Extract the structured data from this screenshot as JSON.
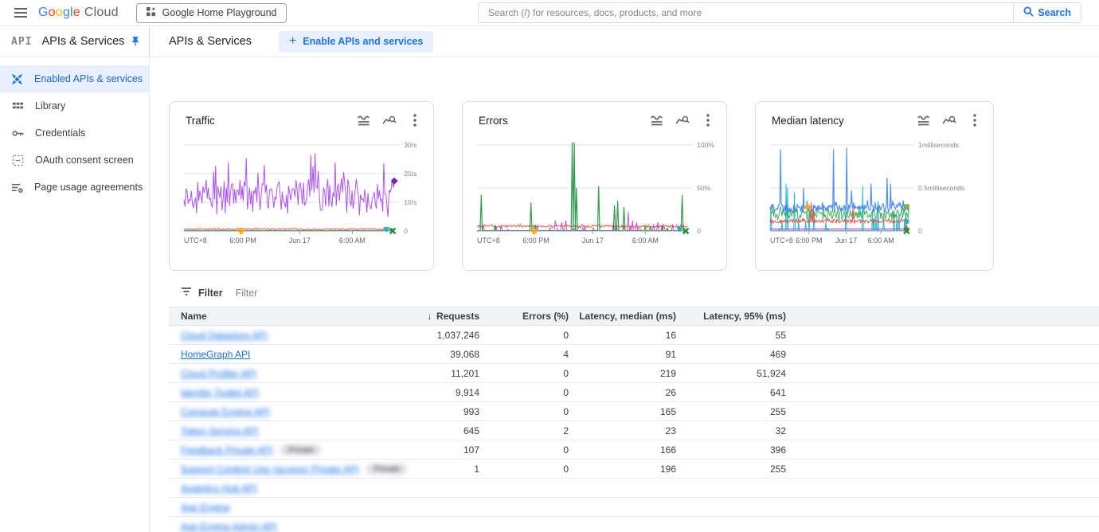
{
  "ui_colors": {
    "accent": "#1a73e8",
    "active_bg": "#e8f0fe",
    "link": "#1a73e8",
    "table_header_bg": "#f1f3f4",
    "border": "#dadce0"
  },
  "topbar": {
    "logo": {
      "letters": [
        {
          "ch": "G",
          "color": "#4285F4"
        },
        {
          "ch": "o",
          "color": "#EA4335"
        },
        {
          "ch": "o",
          "color": "#FBBC04"
        },
        {
          "ch": "g",
          "color": "#4285F4"
        },
        {
          "ch": "l",
          "color": "#34A853"
        },
        {
          "ch": "e",
          "color": "#EA4335"
        }
      ],
      "cloud_text": "Cloud"
    },
    "project_selector": "Google Home Playground",
    "search": {
      "placeholder": "Search (/) for resources, docs, products, and more",
      "button_label": "Search"
    }
  },
  "sidebar": {
    "product_logo": "API",
    "title": "APIs & Services",
    "items": [
      {
        "label": "Enabled APIs & services",
        "icon": "hub-icon",
        "active": true
      },
      {
        "label": "Library",
        "icon": "library-icon",
        "active": false
      },
      {
        "label": "Credentials",
        "icon": "key-icon",
        "active": false
      },
      {
        "label": "OAuth consent screen",
        "icon": "oauth-icon",
        "active": false
      },
      {
        "label": "Page usage agreements",
        "icon": "agreements-icon",
        "active": false
      }
    ]
  },
  "page": {
    "title": "APIs & Services",
    "enable_button_label": "Enable APIs and services"
  },
  "charts": [
    {
      "title": "Traffic",
      "y_ticks": [
        {
          "label": "30/s",
          "f": 1
        },
        {
          "label": "20/s",
          "f": 0.6667
        },
        {
          "label": "10/s",
          "f": 0.3333
        }
      ],
      "zero_label": "0",
      "x_ticks": [
        {
          "label": "UTC+8",
          "f": 0.02,
          "anchor": "start",
          "tick": false
        },
        {
          "label": "6:00 PM",
          "f": 0.28,
          "tick": true
        },
        {
          "label": "Jun 17",
          "f": 0.55,
          "tick": true
        },
        {
          "label": "6:00 AM",
          "f": 0.8,
          "tick": true
        }
      ],
      "series": [
        {
          "name": "requests",
          "color": "#a142f4",
          "width": 1,
          "type": "noisy",
          "base": 0.4,
          "amp": 0.26,
          "spike_p": 0.1,
          "spike_amp": 0.45,
          "min": 0.05,
          "max": 0.95,
          "seed": 11,
          "events": [
            {
              "f": 0.605,
              "h": 0.88
            },
            {
              "f": 0.615,
              "h": 0.75
            },
            {
              "f": 0.625,
              "h": 0.9
            },
            {
              "f": 0.64,
              "h": 0.7
            },
            {
              "f": 0.72,
              "h": 0.8
            }
          ],
          "end_marker": {
            "shape": "diamond",
            "color": "#7627bb"
          }
        },
        {
          "name": "low-red",
          "color": "#ea4335",
          "width": 1,
          "type": "noisy",
          "base": 0.022,
          "amp": 0.012,
          "min": 0.008,
          "max": 0.06,
          "seed": 5
        },
        {
          "name": "zero-green",
          "color": "#1e8e3e",
          "width": 1.4,
          "type": "flat",
          "base": 0.004
        }
      ],
      "markers": [
        {
          "shape": "plus",
          "color": "#f9ab00",
          "f": 0.27,
          "h": 0
        },
        {
          "shape": "tri-down",
          "color": "#12b5cb",
          "f": 0.962,
          "h": 0.015
        },
        {
          "shape": "x",
          "color": "#1e8e3e",
          "f": 0.992,
          "h": 0
        }
      ]
    },
    {
      "title": "Errors",
      "y_ticks": [
        {
          "label": "100%",
          "f": 1
        },
        {
          "label": "50%",
          "f": 0.5
        }
      ],
      "zero_label": "0",
      "x_ticks": [
        {
          "label": "UTC+8",
          "f": 0.02,
          "anchor": "start",
          "tick": false
        },
        {
          "label": "6:00 PM",
          "f": 0.28,
          "tick": true
        },
        {
          "label": "Jun 17",
          "f": 0.55,
          "tick": true
        },
        {
          "label": "6:00 AM",
          "f": 0.8,
          "tick": true
        }
      ],
      "series": [
        {
          "name": "magenta-spikes",
          "color": "#c442da",
          "width": 1,
          "type": "spikes",
          "spike_p": 0.16,
          "amp": 0.07,
          "seed": 33,
          "events": [
            {
              "f": 0.37,
              "h": 0.12
            },
            {
              "f": 0.4,
              "h": 0.1
            },
            {
              "f": 0.42,
              "h": 0.12
            },
            {
              "f": 0.65,
              "h": 0.1
            },
            {
              "f": 0.72,
              "h": 0.22
            },
            {
              "f": 0.74,
              "h": 0.12
            },
            {
              "f": 0.76,
              "h": 0.1
            },
            {
              "f": 0.84,
              "h": 0.08
            },
            {
              "f": 0.86,
              "h": 0.1
            },
            {
              "f": 0.93,
              "h": 0.08
            }
          ]
        },
        {
          "name": "red-rate",
          "color": "#ea4335",
          "width": 1,
          "type": "noisy",
          "base": 0.055,
          "amp": 0.022,
          "min": 0.02,
          "max": 0.12,
          "seed": 8
        },
        {
          "name": "green-errors",
          "color": "#1e8e3e",
          "width": 1.2,
          "type": "spikes",
          "spike_p": 0.02,
          "amp": 0.06,
          "seed": 21,
          "events": [
            {
              "f": 0.018,
              "h": 0.42
            },
            {
              "f": 0.255,
              "h": 0.33
            },
            {
              "f": 0.452,
              "h": 1.03
            },
            {
              "f": 0.462,
              "h": 1.03
            },
            {
              "f": 0.472,
              "h": 0.5
            },
            {
              "f": 0.58,
              "h": 0.52
            },
            {
              "f": 0.655,
              "h": 0.3
            },
            {
              "f": 0.67,
              "h": 0.35
            },
            {
              "f": 0.7,
              "h": 0.28
            },
            {
              "f": 0.975,
              "h": 0.42
            }
          ]
        }
      ],
      "markers": [
        {
          "shape": "plus",
          "color": "#f9ab00",
          "f": 0.27,
          "h": 0
        },
        {
          "shape": "tri-down",
          "color": "#12b5cb",
          "f": 0.962,
          "h": 0.015
        },
        {
          "shape": "x",
          "color": "#1e8e3e",
          "f": 0.992,
          "h": 0
        }
      ]
    },
    {
      "title": "Median latency",
      "y_ticks": [
        {
          "label": "1milliseconds",
          "f": 1
        },
        {
          "label": "0.5milliseconds",
          "f": 0.5
        }
      ],
      "zero_label": "0",
      "x_ticks": [
        {
          "label": "UTC+8",
          "f": 0.02,
          "anchor": "start",
          "tick": false
        },
        {
          "label": "6:00 PM",
          "f": 0.28,
          "tick": true
        },
        {
          "label": "Jun 17",
          "f": 0.55,
          "tick": true
        },
        {
          "label": "6:00 AM",
          "f": 0.8,
          "tick": true
        }
      ],
      "series": [
        {
          "name": "teal",
          "color": "#12b5cb",
          "width": 1,
          "type": "spikes",
          "spike_p": 0.1,
          "amp": 0.25,
          "seed": 51,
          "events": [
            {
              "f": 0.115,
              "h": 0.55
            },
            {
              "f": 0.125,
              "h": 0.5
            },
            {
              "f": 0.175,
              "h": 0.45
            },
            {
              "f": 0.55,
              "h": 0.3
            },
            {
              "f": 0.67,
              "h": 0.52
            },
            {
              "f": 0.78,
              "h": 0.35
            }
          ]
        },
        {
          "name": "green",
          "color": "#34a853",
          "width": 1,
          "type": "noisy",
          "base": 0.2,
          "amp": 0.1,
          "min": 0.06,
          "max": 0.42,
          "seed": 41
        },
        {
          "name": "red",
          "color": "#ea4335",
          "width": 1,
          "type": "noisy",
          "base": 0.115,
          "amp": 0.035,
          "min": 0.06,
          "max": 0.4,
          "seed": 61,
          "events": [
            {
              "f": 0.295,
              "h": 0.33
            },
            {
              "f": 0.31,
              "h": 0.3
            },
            {
              "f": 0.6,
              "h": 0.28
            }
          ]
        },
        {
          "name": "blue",
          "color": "#4285f4",
          "width": 1.2,
          "type": "noisy",
          "base": 0.27,
          "amp": 0.07,
          "spike_p": 0.06,
          "spike_amp": 0.18,
          "min": 0.17,
          "max": 0.97,
          "seed": 71,
          "events": [
            {
              "f": 0.075,
              "h": 0.95
            },
            {
              "f": 0.24,
              "h": 0.5
            },
            {
              "f": 0.455,
              "h": 0.95
            },
            {
              "f": 0.555,
              "h": 0.97
            },
            {
              "f": 0.73,
              "h": 0.55
            },
            {
              "f": 0.845,
              "h": 0.62
            },
            {
              "f": 0.87,
              "h": 0.55
            }
          ]
        },
        {
          "name": "purple-flat",
          "color": "#a142f4",
          "width": 1.2,
          "type": "flat",
          "base": 0.022
        }
      ],
      "markers": [
        {
          "shape": "plus",
          "color": "#f9ab00",
          "f": 0.27,
          "h": 0.28
        },
        {
          "shape": "square",
          "color": "#7cb342",
          "f": 0.985,
          "h": 0.28
        },
        {
          "shape": "tri-down",
          "color": "#12b5cb",
          "f": 0.985,
          "h": 0.1
        },
        {
          "shape": "tri-up",
          "color": "#ea4335",
          "f": 0.985,
          "h": 0.035
        },
        {
          "shape": "x",
          "color": "#1e8e3e",
          "f": 0.985,
          "h": 0
        }
      ]
    }
  ],
  "filter": {
    "label": "Filter",
    "placeholder": "Filter"
  },
  "table": {
    "columns": [
      {
        "label": "Name",
        "align": "left",
        "sorted": false
      },
      {
        "label": "Requests",
        "align": "right",
        "sorted": true,
        "sort_icon": "↓"
      },
      {
        "label": "Errors (%)",
        "align": "right",
        "sorted": false
      },
      {
        "label": "Latency, median (ms)",
        "align": "right",
        "sorted": false
      },
      {
        "label": "Latency, 95% (ms)",
        "align": "right",
        "sorted": false
      }
    ],
    "rows": [
      {
        "name": "Cloud Datastore API",
        "blurred": true,
        "private_badge": false,
        "badge_label": "",
        "requests": "1,037,246",
        "errors_pct": "0",
        "latency_median": "16",
        "latency_95": "55"
      },
      {
        "name": "HomeGraph API",
        "blurred": false,
        "private_badge": false,
        "badge_label": "",
        "requests": "39,068",
        "errors_pct": "4",
        "latency_median": "91",
        "latency_95": "469"
      },
      {
        "name": "Cloud Profiler API",
        "blurred": true,
        "private_badge": false,
        "badge_label": "",
        "requests": "11,201",
        "errors_pct": "0",
        "latency_median": "219",
        "latency_95": "51,924"
      },
      {
        "name": "Identity Toolkit API",
        "blurred": true,
        "private_badge": false,
        "badge_label": "",
        "requests": "9,914",
        "errors_pct": "0",
        "latency_median": "26",
        "latency_95": "641"
      },
      {
        "name": "Compute Engine API",
        "blurred": true,
        "private_badge": false,
        "badge_label": "",
        "requests": "993",
        "errors_pct": "0",
        "latency_median": "165",
        "latency_95": "255"
      },
      {
        "name": "Token Service API",
        "blurred": true,
        "private_badge": false,
        "badge_label": "",
        "requests": "645",
        "errors_pct": "2",
        "latency_median": "23",
        "latency_95": "32"
      },
      {
        "name": "Feedback Private API",
        "blurred": true,
        "private_badge": true,
        "badge_label": "Private",
        "requests": "107",
        "errors_pct": "0",
        "latency_median": "166",
        "latency_95": "396"
      },
      {
        "name": "Support Content Use (access) Private API",
        "blurred": true,
        "private_badge": true,
        "badge_label": "Private",
        "requests": "1",
        "errors_pct": "0",
        "latency_median": "196",
        "latency_95": "255"
      },
      {
        "name": "Analytics Hub API",
        "blurred": true,
        "private_badge": false,
        "badge_label": "",
        "requests": "",
        "errors_pct": "",
        "latency_median": "",
        "latency_95": ""
      },
      {
        "name": "App Engine",
        "blurred": true,
        "private_badge": false,
        "badge_label": "",
        "requests": "",
        "errors_pct": "",
        "latency_median": "",
        "latency_95": ""
      },
      {
        "name": "App Engine Admin API",
        "blurred": true,
        "private_badge": false,
        "badge_label": "",
        "requests": "",
        "errors_pct": "",
        "latency_median": "",
        "latency_95": ""
      }
    ]
  }
}
